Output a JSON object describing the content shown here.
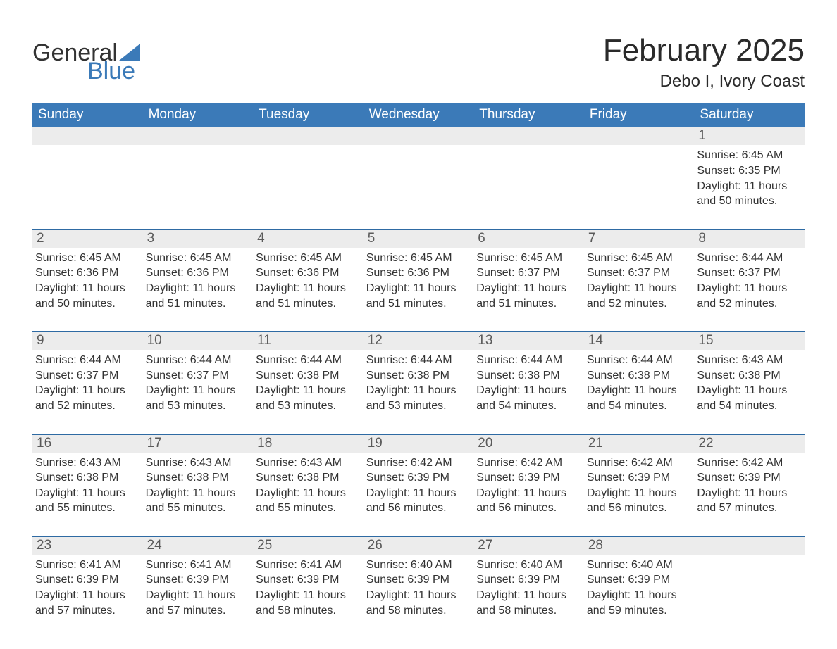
{
  "brand": {
    "word1": "General",
    "word2": "Blue"
  },
  "title": "February 2025",
  "location": "Debo I, Ivory Coast",
  "colors": {
    "brand_blue": "#3b7ab8",
    "header_blue": "#3a77b5",
    "daynum_bg": "#ececec",
    "rule_blue": "#2e6aa3",
    "background": "#ffffff",
    "text": "#333333"
  },
  "weekdays": [
    "Sunday",
    "Monday",
    "Tuesday",
    "Wednesday",
    "Thursday",
    "Friday",
    "Saturday"
  ],
  "layout": {
    "type": "calendar",
    "columns": 7,
    "month_start_weekday_index": 6,
    "days_in_month": 28,
    "font_family": "Segoe UI",
    "title_fontsize": 44,
    "location_fontsize": 24,
    "weekday_fontsize": 19,
    "daynum_fontsize": 19,
    "body_fontsize": 16
  },
  "weeks": [
    {
      "cells": [
        {
          "num": "",
          "body": ""
        },
        {
          "num": "",
          "body": ""
        },
        {
          "num": "",
          "body": ""
        },
        {
          "num": "",
          "body": ""
        },
        {
          "num": "",
          "body": ""
        },
        {
          "num": "",
          "body": ""
        },
        {
          "num": "1",
          "body": "Sunrise: 6:45 AM\nSunset: 6:35 PM\nDaylight: 11 hours and 50 minutes."
        }
      ]
    },
    {
      "cells": [
        {
          "num": "2",
          "body": "Sunrise: 6:45 AM\nSunset: 6:36 PM\nDaylight: 11 hours and 50 minutes."
        },
        {
          "num": "3",
          "body": "Sunrise: 6:45 AM\nSunset: 6:36 PM\nDaylight: 11 hours and 51 minutes."
        },
        {
          "num": "4",
          "body": "Sunrise: 6:45 AM\nSunset: 6:36 PM\nDaylight: 11 hours and 51 minutes."
        },
        {
          "num": "5",
          "body": "Sunrise: 6:45 AM\nSunset: 6:36 PM\nDaylight: 11 hours and 51 minutes."
        },
        {
          "num": "6",
          "body": "Sunrise: 6:45 AM\nSunset: 6:37 PM\nDaylight: 11 hours and 51 minutes."
        },
        {
          "num": "7",
          "body": "Sunrise: 6:45 AM\nSunset: 6:37 PM\nDaylight: 11 hours and 52 minutes."
        },
        {
          "num": "8",
          "body": "Sunrise: 6:44 AM\nSunset: 6:37 PM\nDaylight: 11 hours and 52 minutes."
        }
      ]
    },
    {
      "cells": [
        {
          "num": "9",
          "body": "Sunrise: 6:44 AM\nSunset: 6:37 PM\nDaylight: 11 hours and 52 minutes."
        },
        {
          "num": "10",
          "body": "Sunrise: 6:44 AM\nSunset: 6:37 PM\nDaylight: 11 hours and 53 minutes."
        },
        {
          "num": "11",
          "body": "Sunrise: 6:44 AM\nSunset: 6:38 PM\nDaylight: 11 hours and 53 minutes."
        },
        {
          "num": "12",
          "body": "Sunrise: 6:44 AM\nSunset: 6:38 PM\nDaylight: 11 hours and 53 minutes."
        },
        {
          "num": "13",
          "body": "Sunrise: 6:44 AM\nSunset: 6:38 PM\nDaylight: 11 hours and 54 minutes."
        },
        {
          "num": "14",
          "body": "Sunrise: 6:44 AM\nSunset: 6:38 PM\nDaylight: 11 hours and 54 minutes."
        },
        {
          "num": "15",
          "body": "Sunrise: 6:43 AM\nSunset: 6:38 PM\nDaylight: 11 hours and 54 minutes."
        }
      ]
    },
    {
      "cells": [
        {
          "num": "16",
          "body": "Sunrise: 6:43 AM\nSunset: 6:38 PM\nDaylight: 11 hours and 55 minutes."
        },
        {
          "num": "17",
          "body": "Sunrise: 6:43 AM\nSunset: 6:38 PM\nDaylight: 11 hours and 55 minutes."
        },
        {
          "num": "18",
          "body": "Sunrise: 6:43 AM\nSunset: 6:38 PM\nDaylight: 11 hours and 55 minutes."
        },
        {
          "num": "19",
          "body": "Sunrise: 6:42 AM\nSunset: 6:39 PM\nDaylight: 11 hours and 56 minutes."
        },
        {
          "num": "20",
          "body": "Sunrise: 6:42 AM\nSunset: 6:39 PM\nDaylight: 11 hours and 56 minutes."
        },
        {
          "num": "21",
          "body": "Sunrise: 6:42 AM\nSunset: 6:39 PM\nDaylight: 11 hours and 56 minutes."
        },
        {
          "num": "22",
          "body": "Sunrise: 6:42 AM\nSunset: 6:39 PM\nDaylight: 11 hours and 57 minutes."
        }
      ]
    },
    {
      "cells": [
        {
          "num": "23",
          "body": "Sunrise: 6:41 AM\nSunset: 6:39 PM\nDaylight: 11 hours and 57 minutes."
        },
        {
          "num": "24",
          "body": "Sunrise: 6:41 AM\nSunset: 6:39 PM\nDaylight: 11 hours and 57 minutes."
        },
        {
          "num": "25",
          "body": "Sunrise: 6:41 AM\nSunset: 6:39 PM\nDaylight: 11 hours and 58 minutes."
        },
        {
          "num": "26",
          "body": "Sunrise: 6:40 AM\nSunset: 6:39 PM\nDaylight: 11 hours and 58 minutes."
        },
        {
          "num": "27",
          "body": "Sunrise: 6:40 AM\nSunset: 6:39 PM\nDaylight: 11 hours and 58 minutes."
        },
        {
          "num": "28",
          "body": "Sunrise: 6:40 AM\nSunset: 6:39 PM\nDaylight: 11 hours and 59 minutes."
        },
        {
          "num": "",
          "body": ""
        }
      ]
    }
  ]
}
